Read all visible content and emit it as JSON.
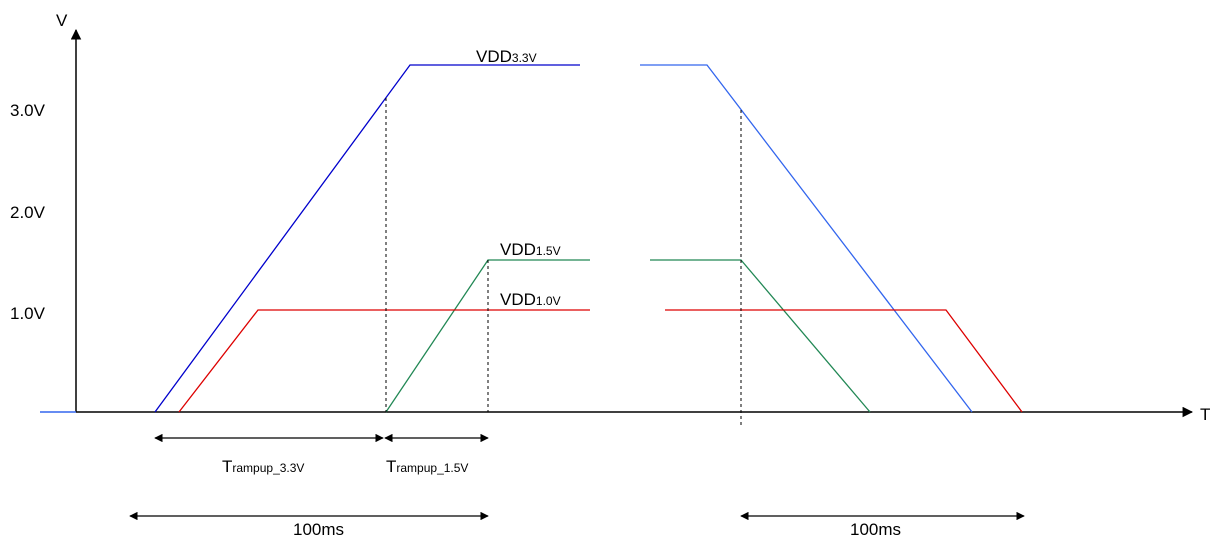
{
  "axes": {
    "y_label": "V",
    "x_label": "T",
    "ticks": [
      {
        "label": "3.0V",
        "value": 3.0
      },
      {
        "label": "2.0V",
        "value": 2.0
      },
      {
        "label": "1.0V",
        "value": 1.0
      }
    ]
  },
  "signals": [
    {
      "id": "vdd33",
      "label_main": "VDD",
      "label_sub": "3.3V",
      "color": "#0000cc",
      "color_fall": "#3366ee"
    },
    {
      "id": "vdd15",
      "label_main": "VDD",
      "label_sub": "1.5V",
      "color": "#228855"
    },
    {
      "id": "vdd10",
      "label_main": "VDD",
      "label_sub": "1.0V",
      "color": "#dd0000"
    }
  ],
  "timings": [
    {
      "id": "t33",
      "label_main": "T",
      "label_sub": "rampup_3.3V"
    },
    {
      "id": "t15",
      "label_main": "T",
      "label_sub": "rampup_1.5V"
    }
  ],
  "durations": [
    {
      "id": "on",
      "label": "100ms"
    },
    {
      "id": "off",
      "label": "100ms"
    }
  ]
}
